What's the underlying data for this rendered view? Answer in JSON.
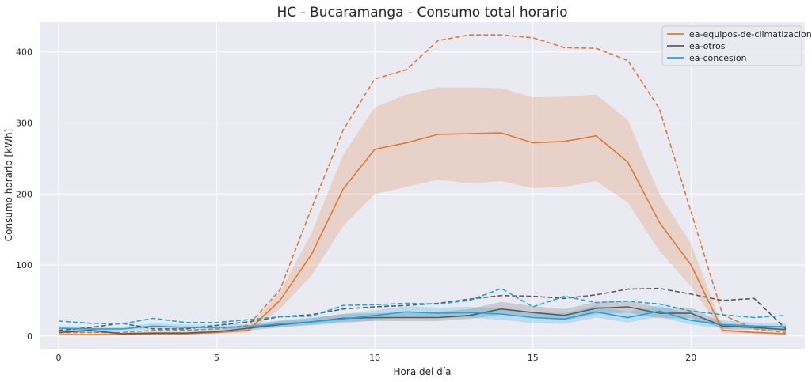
{
  "chart_data": {
    "type": "line",
    "title": "HC - Bucaramanga - Consumo total horario",
    "xlabel": "Hora del día",
    "ylabel": "Consumo horario [kWh]",
    "xlim": [
      -0.6,
      23.6
    ],
    "ylim": [
      -18,
      442
    ],
    "xticks": [
      0,
      5,
      10,
      15,
      20
    ],
    "yticks": [
      0,
      100,
      200,
      300,
      400
    ],
    "grid": true,
    "legend_position": "top-right",
    "x": [
      0,
      1,
      2,
      3,
      4,
      5,
      6,
      7,
      8,
      9,
      10,
      11,
      12,
      13,
      14,
      15,
      16,
      17,
      18,
      19,
      20,
      21,
      22,
      23
    ],
    "series": [
      {
        "name": "ea-equipos-de-climatizacion",
        "color": "#dd7a37",
        "mean": [
          2,
          2,
          2,
          3,
          3,
          5,
          8,
          50,
          115,
          207,
          263,
          272,
          284,
          285,
          286,
          272,
          274,
          282,
          245,
          160,
          100,
          8,
          5,
          3
        ],
        "ci_lower": [
          1,
          1,
          1,
          2,
          2,
          3,
          5,
          38,
          85,
          155,
          200,
          210,
          220,
          215,
          218,
          208,
          210,
          218,
          188,
          120,
          70,
          4,
          3,
          2
        ],
        "ci_upper": [
          3,
          3,
          3,
          4,
          4,
          7,
          12,
          62,
          145,
          255,
          322,
          340,
          350,
          350,
          349,
          336,
          337,
          340,
          304,
          200,
          130,
          12,
          7,
          4
        ],
        "max": [
          5,
          5,
          5,
          8,
          8,
          10,
          15,
          65,
          180,
          290,
          362,
          375,
          416,
          424,
          424,
          420,
          406,
          405,
          388,
          320,
          175,
          30,
          10,
          5
        ]
      },
      {
        "name": "ea-otros",
        "color": "#5c5c5c",
        "mean": [
          5,
          8,
          3,
          4,
          4,
          6,
          11,
          16,
          20,
          25,
          26,
          26,
          26,
          29,
          38,
          33,
          29,
          39,
          41,
          32,
          32,
          14,
          12,
          9
        ],
        "ci_lower": [
          3,
          5,
          1,
          2,
          2,
          4,
          8,
          12,
          16,
          20,
          21,
          21,
          21,
          24,
          30,
          26,
          22,
          31,
          33,
          25,
          25,
          10,
          9,
          6
        ],
        "ci_upper": [
          8,
          11,
          5,
          6,
          6,
          9,
          15,
          21,
          25,
          31,
          32,
          33,
          34,
          38,
          48,
          42,
          38,
          48,
          50,
          40,
          40,
          19,
          15,
          12
        ],
        "max": [
          8,
          12,
          18,
          10,
          10,
          15,
          20,
          27,
          30,
          38,
          41,
          43,
          46,
          52,
          57,
          56,
          53,
          58,
          66,
          67,
          59,
          50,
          53,
          10
        ]
      },
      {
        "name": "ea-concesion",
        "color": "#1fa5dd",
        "mean": [
          11,
          10,
          10,
          14,
          12,
          12,
          13,
          17,
          20,
          24,
          29,
          34,
          32,
          33,
          31,
          26,
          24,
          34,
          26,
          35,
          22,
          16,
          14,
          13
        ],
        "ci_lower": [
          8,
          7,
          7,
          10,
          9,
          9,
          10,
          13,
          15,
          18,
          22,
          27,
          25,
          26,
          23,
          18,
          17,
          26,
          19,
          27,
          16,
          11,
          10,
          9
        ],
        "ci_upper": [
          14,
          13,
          13,
          18,
          16,
          16,
          17,
          22,
          26,
          31,
          36,
          42,
          40,
          41,
          39,
          34,
          32,
          43,
          34,
          43,
          29,
          22,
          19,
          18
        ],
        "max": [
          21,
          18,
          17,
          25,
          19,
          19,
          23,
          27,
          28,
          43,
          44,
          46,
          45,
          50,
          67,
          41,
          56,
          47,
          49,
          45,
          35,
          30,
          26,
          29
        ]
      }
    ]
  }
}
